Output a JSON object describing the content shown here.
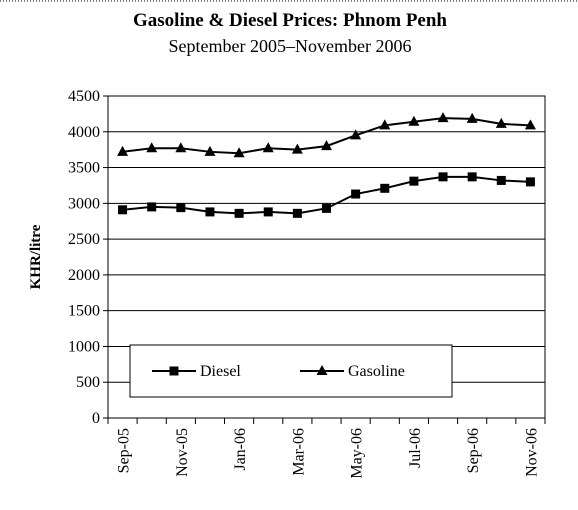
{
  "chart_data": {
    "type": "line",
    "title": "Gasoline & Diesel Prices: Phnom Penh",
    "subtitle": "September 2005–November 2006",
    "y_label": "KHR/litre",
    "categories": [
      "Sep-05",
      null,
      "Nov-05",
      null,
      "Jan-06",
      null,
      "Mar-06",
      null,
      "May-06",
      null,
      "Jul-06",
      null,
      "Sep-06",
      null,
      "Nov-06"
    ],
    "series": [
      {
        "name": "Diesel",
        "color": "#000000",
        "marker": "square",
        "values": [
          2910,
          2950,
          2940,
          2880,
          2860,
          2880,
          2860,
          2930,
          3130,
          3210,
          3310,
          3370,
          3370,
          3320,
          3300
        ]
      },
      {
        "name": "Gasoline",
        "color": "#000000",
        "marker": "triangle",
        "values": [
          3720,
          3770,
          3770,
          3720,
          3700,
          3770,
          3750,
          3800,
          3950,
          4090,
          4140,
          4190,
          4180,
          4110,
          4090
        ]
      }
    ],
    "ylim": [
      0,
      4500
    ],
    "yticks": [
      0,
      500,
      1000,
      1500,
      2000,
      2500,
      3000,
      3500,
      4000,
      4500
    ],
    "grid": true,
    "legend": "bottom"
  }
}
